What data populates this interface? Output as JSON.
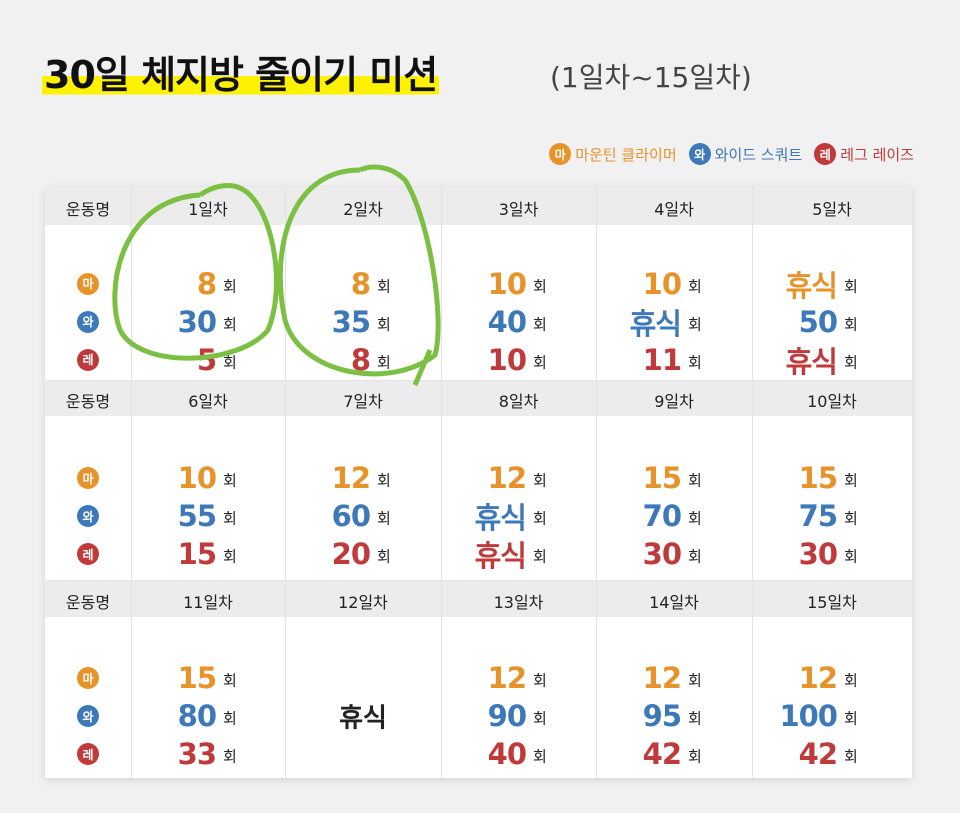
{
  "header": {
    "title": "30일 체지방 줄이기 미션",
    "subtitle": "(1일차~15일차)"
  },
  "legend": [
    {
      "icon": "마",
      "label": "마운틴 클라이머",
      "color": "#e8922a"
    },
    {
      "icon": "와",
      "label": "와이드 스쿼트",
      "color": "#3d78b8"
    },
    {
      "icon": "레",
      "label": "레그 레이즈",
      "color": "#c0393b"
    }
  ],
  "table": {
    "first_column": "운동명",
    "unit": "회",
    "blocks": [
      {
        "days": [
          {
            "label": "1일차",
            "counts": [
              8,
              30,
              5
            ]
          },
          {
            "label": "2일차",
            "counts": [
              8,
              35,
              8
            ]
          },
          {
            "label": "3일차",
            "counts": [
              10,
              40,
              10
            ]
          },
          {
            "label": "4일차",
            "counts": [
              10,
              "휴식",
              11
            ]
          },
          {
            "label": "5일차",
            "counts": [
              "휴식",
              50,
              "휴식"
            ]
          }
        ]
      },
      {
        "days": [
          {
            "label": "6일차",
            "counts": [
              10,
              55,
              15
            ]
          },
          {
            "label": "7일차",
            "counts": [
              12,
              60,
              20
            ]
          },
          {
            "label": "8일차",
            "counts": [
              12,
              "휴식",
              "휴식"
            ]
          },
          {
            "label": "9일차",
            "counts": [
              15,
              70,
              30
            ]
          },
          {
            "label": "10일차",
            "counts": [
              15,
              75,
              30
            ]
          }
        ]
      },
      {
        "days": [
          {
            "label": "11일차",
            "counts": [
              15,
              80,
              33
            ]
          },
          {
            "label": "12일차",
            "rest": "휴식"
          },
          {
            "label": "13일차",
            "counts": [
              12,
              90,
              40
            ]
          },
          {
            "label": "14일차",
            "counts": [
              12,
              95,
              42
            ]
          },
          {
            "label": "15일차",
            "counts": [
              12,
              100,
              42
            ]
          }
        ]
      }
    ]
  }
}
